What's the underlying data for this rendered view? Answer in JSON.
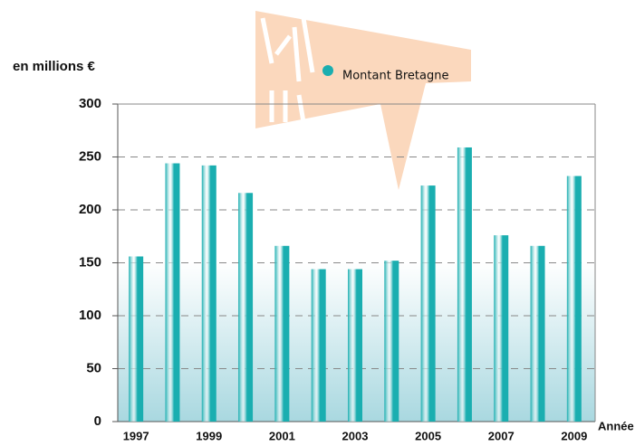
{
  "chart_data": {
    "type": "bar",
    "y_label": "en millions €",
    "x_label": "Année",
    "categories": [
      "1997",
      null,
      "1999",
      null,
      "2001",
      null,
      "2003",
      null,
      "2005",
      null,
      "2007",
      null,
      "2009"
    ],
    "series": [
      {
        "name": "Montant Bretagne",
        "color": "#1aaeb0",
        "values": [
          156,
          244,
          242,
          216,
          166,
          144,
          144,
          152,
          223,
          259,
          176,
          166,
          232
        ]
      }
    ],
    "ylim": [
      0,
      300
    ],
    "yticks": [
      0,
      50,
      100,
      150,
      200,
      250,
      300
    ],
    "grid": true
  }
}
